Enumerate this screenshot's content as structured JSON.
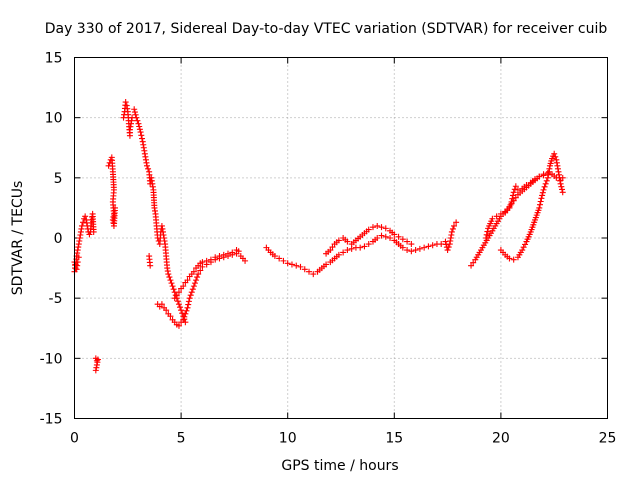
{
  "chart_data": {
    "type": "scatter",
    "title": "Day 330 of 2017, Sidereal Day-to-day VTEC variation (SDTVAR) for receiver cuib",
    "xlabel": "GPS time / hours",
    "ylabel": "SDTVAR / TECUs",
    "xlim": [
      0,
      25
    ],
    "ylim": [
      -15,
      15
    ],
    "xticks": [
      0,
      5,
      10,
      15,
      20,
      25
    ],
    "xtick_labels": [
      "0",
      "5",
      "10",
      "15",
      "20",
      "25"
    ],
    "yticks": [
      -15,
      -10,
      -5,
      0,
      5,
      10,
      15
    ],
    "ytick_labels": [
      "-15",
      "-10",
      "-5",
      "0",
      "5",
      "10",
      "15"
    ],
    "grid": true,
    "marker": "+",
    "color": "#ff0000",
    "series": [
      {
        "name": "s1",
        "points": [
          [
            0.0,
            -2.0
          ],
          [
            0.05,
            -2.5
          ],
          [
            0.1,
            -1.5
          ],
          [
            0.15,
            -1.0
          ],
          [
            0.2,
            -0.5
          ],
          [
            0.25,
            0.0
          ],
          [
            0.3,
            0.5
          ],
          [
            0.35,
            1.0
          ],
          [
            0.4,
            1.3
          ],
          [
            0.45,
            1.6
          ],
          [
            0.5,
            1.8
          ],
          [
            0.55,
            1.5
          ],
          [
            0.6,
            1.0
          ],
          [
            0.65,
            0.5
          ],
          [
            0.7,
            0.3
          ],
          [
            0.75,
            0.5
          ],
          [
            0.8,
            1.5
          ],
          [
            0.85,
            2.0
          ],
          [
            0.9,
            0.5
          ]
        ]
      },
      {
        "name": "s2",
        "points": [
          [
            0.0,
            -2.8
          ],
          [
            0.05,
            -2.2
          ],
          [
            0.1,
            -2.6
          ],
          [
            0.15,
            -2.0
          ],
          [
            0.2,
            -1.6
          ]
        ]
      },
      {
        "name": "s3",
        "points": [
          [
            1.0,
            -10.0
          ],
          [
            1.05,
            -10.2
          ],
          [
            1.1,
            -10.1
          ],
          [
            1.0,
            -11.0
          ]
        ]
      },
      {
        "name": "s4",
        "points": [
          [
            1.6,
            6.0
          ],
          [
            1.7,
            6.5
          ],
          [
            1.75,
            6.7
          ],
          [
            1.8,
            5.5
          ],
          [
            1.85,
            4.0
          ],
          [
            1.8,
            3.0
          ],
          [
            1.85,
            2.0
          ],
          [
            1.8,
            1.5
          ],
          [
            1.85,
            1.0
          ],
          [
            1.9,
            2.5
          ]
        ]
      },
      {
        "name": "s5",
        "points": [
          [
            2.3,
            10.0
          ],
          [
            2.35,
            10.5
          ],
          [
            2.4,
            11.3
          ],
          [
            2.45,
            11.0
          ],
          [
            2.5,
            10.5
          ],
          [
            2.55,
            9.5
          ],
          [
            2.6,
            8.5
          ],
          [
            2.6,
            9.0
          ],
          [
            2.7,
            10.0
          ]
        ]
      },
      {
        "name": "s6",
        "points": [
          [
            2.8,
            10.7
          ],
          [
            2.9,
            10.0
          ],
          [
            3.0,
            9.5
          ],
          [
            3.1,
            8.8
          ],
          [
            3.2,
            8.0
          ],
          [
            3.3,
            7.0
          ],
          [
            3.4,
            6.0
          ],
          [
            3.5,
            5.5
          ],
          [
            3.55,
            4.5
          ],
          [
            3.6,
            5.0
          ],
          [
            3.7,
            4.0
          ],
          [
            3.75,
            2.5
          ],
          [
            3.8,
            2.0
          ],
          [
            3.85,
            1.0
          ],
          [
            3.9,
            0.0
          ],
          [
            4.0,
            -0.5
          ],
          [
            4.05,
            0.5
          ],
          [
            4.1,
            1.0
          ],
          [
            4.15,
            0.5
          ],
          [
            4.2,
            0.0
          ],
          [
            4.25,
            -0.5
          ],
          [
            4.3,
            -1.5
          ],
          [
            4.35,
            -2.5
          ],
          [
            4.4,
            -3.0
          ],
          [
            4.5,
            -3.5
          ],
          [
            4.6,
            -4.0
          ],
          [
            4.7,
            -4.5
          ],
          [
            4.8,
            -5.0
          ],
          [
            4.9,
            -5.5
          ],
          [
            5.0,
            -6.0
          ],
          [
            5.1,
            -6.5
          ],
          [
            5.2,
            -7.0
          ]
        ]
      },
      {
        "name": "s7",
        "points": [
          [
            3.5,
            -1.5
          ],
          [
            3.55,
            -2.3
          ]
        ]
      },
      {
        "name": "s8",
        "points": [
          [
            3.9,
            -5.5
          ],
          [
            4.0,
            -5.7
          ],
          [
            4.1,
            -5.5
          ],
          [
            4.2,
            -5.8
          ],
          [
            4.3,
            -6.0
          ],
          [
            4.4,
            -6.3
          ],
          [
            4.5,
            -6.5
          ],
          [
            4.6,
            -6.8
          ],
          [
            4.7,
            -7.0
          ],
          [
            4.8,
            -7.2
          ],
          [
            4.9,
            -7.3
          ],
          [
            5.0,
            -7.0
          ],
          [
            5.1,
            -6.8
          ],
          [
            5.2,
            -6.3
          ],
          [
            5.3,
            -5.8
          ],
          [
            5.4,
            -5.0
          ],
          [
            5.5,
            -4.5
          ],
          [
            5.6,
            -4.0
          ],
          [
            5.7,
            -3.5
          ],
          [
            5.8,
            -3.0
          ],
          [
            5.9,
            -2.7
          ],
          [
            6.0,
            -2.4
          ],
          [
            6.2,
            -2.2
          ],
          [
            6.4,
            -2.0
          ],
          [
            6.6,
            -1.8
          ],
          [
            6.8,
            -1.7
          ],
          [
            7.0,
            -1.6
          ],
          [
            7.2,
            -1.5
          ],
          [
            7.4,
            -1.4
          ],
          [
            7.6,
            -1.3
          ],
          [
            7.8,
            -1.5
          ],
          [
            8.0,
            -1.9
          ]
        ]
      },
      {
        "name": "s9",
        "points": [
          [
            4.7,
            -5.0
          ],
          [
            4.8,
            -4.8
          ],
          [
            4.9,
            -4.5
          ],
          [
            5.0,
            -4.2
          ],
          [
            5.1,
            -4.0
          ],
          [
            5.2,
            -3.7
          ],
          [
            5.3,
            -3.5
          ],
          [
            5.4,
            -3.2
          ],
          [
            5.5,
            -3.0
          ],
          [
            5.6,
            -2.8
          ],
          [
            5.7,
            -2.5
          ],
          [
            5.8,
            -2.3
          ],
          [
            5.9,
            -2.1
          ],
          [
            6.0,
            -2.0
          ],
          [
            6.2,
            -1.9
          ],
          [
            6.4,
            -1.8
          ],
          [
            6.6,
            -1.6
          ],
          [
            6.8,
            -1.5
          ],
          [
            7.0,
            -1.4
          ],
          [
            7.2,
            -1.3
          ],
          [
            7.4,
            -1.2
          ],
          [
            7.6,
            -1.0
          ],
          [
            7.7,
            -1.1
          ]
        ]
      },
      {
        "name": "s10",
        "points": [
          [
            9.0,
            -0.8
          ],
          [
            9.2,
            -1.2
          ],
          [
            9.4,
            -1.5
          ],
          [
            9.6,
            -1.7
          ],
          [
            9.8,
            -1.9
          ],
          [
            10.0,
            -2.1
          ],
          [
            10.2,
            -2.2
          ],
          [
            10.4,
            -2.3
          ],
          [
            10.6,
            -2.4
          ],
          [
            10.8,
            -2.6
          ],
          [
            11.0,
            -2.8
          ],
          [
            11.2,
            -3.0
          ],
          [
            11.4,
            -2.8
          ],
          [
            11.6,
            -2.5
          ],
          [
            11.8,
            -2.2
          ],
          [
            12.0,
            -2.0
          ],
          [
            12.2,
            -1.7
          ],
          [
            12.4,
            -1.4
          ],
          [
            12.6,
            -1.2
          ],
          [
            12.8,
            -1.0
          ],
          [
            13.0,
            -0.9
          ],
          [
            13.2,
            -0.8
          ],
          [
            13.4,
            -0.8
          ],
          [
            13.6,
            -0.7
          ],
          [
            13.8,
            -0.5
          ],
          [
            14.0,
            -0.3
          ],
          [
            14.2,
            0.0
          ],
          [
            14.4,
            0.2
          ],
          [
            14.6,
            0.1
          ],
          [
            14.8,
            0.0
          ],
          [
            15.0,
            -0.2
          ],
          [
            15.2,
            -0.5
          ],
          [
            15.4,
            -0.8
          ],
          [
            15.6,
            -1.0
          ],
          [
            15.8,
            -1.1
          ],
          [
            16.0,
            -1.0
          ],
          [
            16.2,
            -0.9
          ],
          [
            16.4,
            -0.8
          ],
          [
            16.6,
            -0.7
          ],
          [
            16.8,
            -0.6
          ],
          [
            17.0,
            -0.5
          ],
          [
            17.2,
            -0.5
          ],
          [
            17.4,
            -0.3
          ],
          [
            17.5,
            -1.0
          ],
          [
            17.6,
            -0.5
          ],
          [
            17.7,
            0.5
          ],
          [
            17.8,
            1.0
          ],
          [
            17.9,
            1.3
          ]
        ]
      },
      {
        "name": "s11",
        "points": [
          [
            11.8,
            -1.3
          ],
          [
            12.0,
            -1.0
          ],
          [
            12.2,
            -0.5
          ],
          [
            12.4,
            -0.2
          ],
          [
            12.6,
            0.0
          ],
          [
            12.8,
            -0.3
          ],
          [
            13.0,
            -0.5
          ],
          [
            13.2,
            -0.2
          ],
          [
            13.4,
            0.1
          ],
          [
            13.6,
            0.4
          ],
          [
            13.8,
            0.7
          ],
          [
            14.0,
            0.9
          ],
          [
            14.2,
            1.0
          ],
          [
            14.4,
            0.9
          ],
          [
            14.6,
            0.8
          ],
          [
            14.8,
            0.6
          ],
          [
            15.0,
            0.3
          ],
          [
            15.2,
            0.1
          ],
          [
            15.4,
            -0.1
          ],
          [
            15.6,
            -0.3
          ],
          [
            15.8,
            -0.5
          ]
        ]
      },
      {
        "name": "s12",
        "points": [
          [
            18.6,
            -2.3
          ],
          [
            18.8,
            -1.8
          ],
          [
            19.0,
            -1.2
          ],
          [
            19.2,
            -0.6
          ],
          [
            19.4,
            0.0
          ],
          [
            19.6,
            0.6
          ],
          [
            19.8,
            1.2
          ],
          [
            20.0,
            1.8
          ],
          [
            20.2,
            2.2
          ],
          [
            20.4,
            2.6
          ],
          [
            20.6,
            3.1
          ],
          [
            20.8,
            3.6
          ],
          [
            21.0,
            3.9
          ],
          [
            21.2,
            4.2
          ],
          [
            21.4,
            4.5
          ],
          [
            21.6,
            4.8
          ],
          [
            21.8,
            5.1
          ],
          [
            22.0,
            5.3
          ],
          [
            22.2,
            5.4
          ],
          [
            22.4,
            5.3
          ],
          [
            22.6,
            5.0
          ],
          [
            22.8,
            4.8
          ],
          [
            22.9,
            5.0
          ]
        ]
      },
      {
        "name": "s13",
        "points": [
          [
            19.3,
            0.0
          ],
          [
            19.4,
            0.8
          ],
          [
            19.5,
            1.2
          ],
          [
            19.6,
            1.6
          ],
          [
            19.8,
            1.8
          ],
          [
            20.0,
            2.0
          ],
          [
            20.2,
            2.1
          ],
          [
            20.4,
            2.5
          ],
          [
            20.5,
            3.0
          ],
          [
            20.6,
            3.8
          ],
          [
            20.7,
            4.3
          ],
          [
            20.8,
            4.0
          ],
          [
            21.0,
            4.1
          ],
          [
            21.2,
            4.4
          ],
          [
            21.4,
            4.6
          ],
          [
            21.6,
            4.9
          ],
          [
            21.8,
            5.1
          ],
          [
            22.0,
            5.2
          ]
        ]
      },
      {
        "name": "s14",
        "points": [
          [
            20.0,
            -1.0
          ],
          [
            20.2,
            -1.4
          ],
          [
            20.4,
            -1.7
          ],
          [
            20.6,
            -1.8
          ],
          [
            20.8,
            -1.6
          ],
          [
            21.0,
            -1.0
          ],
          [
            21.2,
            -0.3
          ],
          [
            21.4,
            0.5
          ],
          [
            21.6,
            1.5
          ],
          [
            21.8,
            2.5
          ],
          [
            21.9,
            3.3
          ],
          [
            22.0,
            4.0
          ],
          [
            22.1,
            4.5
          ],
          [
            22.2,
            5.0
          ],
          [
            22.3,
            6.0
          ],
          [
            22.4,
            6.6
          ],
          [
            22.5,
            7.0
          ],
          [
            22.6,
            6.5
          ],
          [
            22.7,
            5.5
          ],
          [
            22.8,
            4.5
          ],
          [
            22.9,
            3.8
          ]
        ]
      }
    ]
  }
}
